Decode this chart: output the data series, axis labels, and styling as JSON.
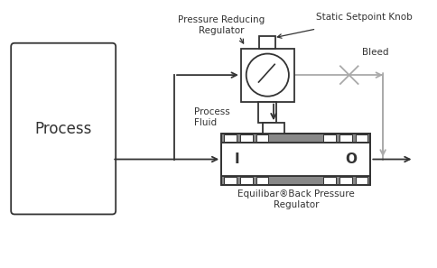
{
  "bg_color": "#ffffff",
  "lc": "#333333",
  "gc": "#aaaaaa",
  "figsize": [
    4.85,
    2.97
  ],
  "dpi": 100,
  "process_label": "Process",
  "title_prr": "Pressure Reducing\nRegulator",
  "title_ssk": "Static Setpoint Knob",
  "title_bleed": "Bleed",
  "title_pf": "Process\nFluid",
  "title_equilibar": "Equilibar®Back Pressure\nRegulator"
}
